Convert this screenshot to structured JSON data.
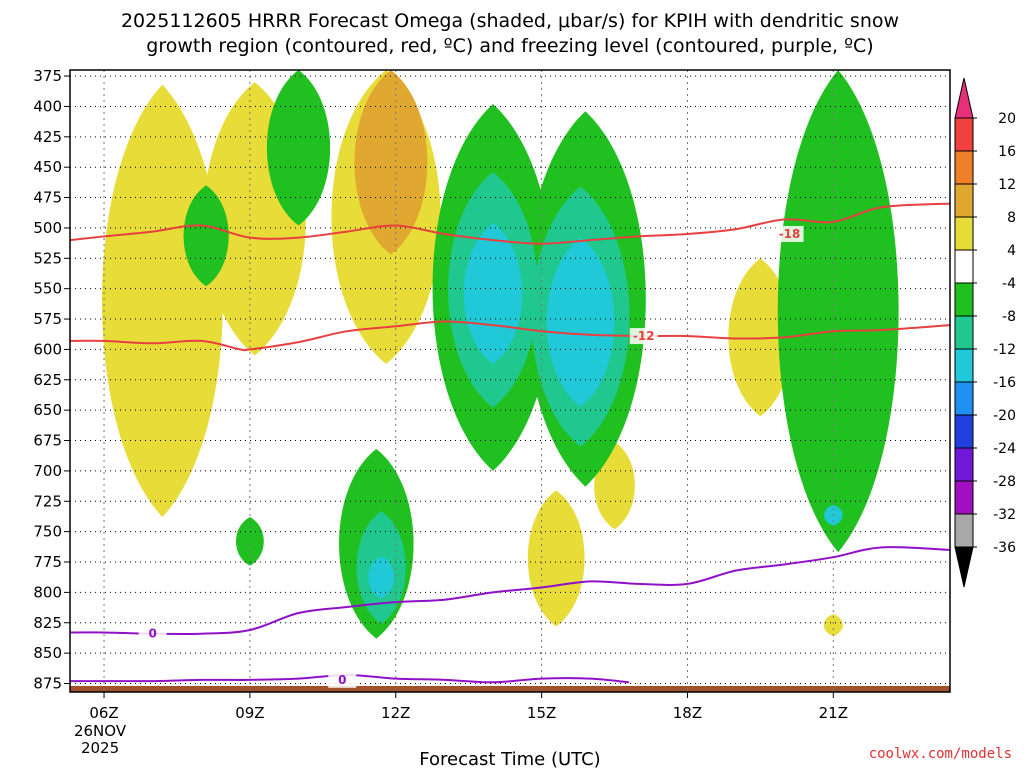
{
  "chart_data": {
    "type": "time-height contour",
    "title_line1": "2025112605 HRRR Forecast Omega (shaded, μbar/s) for KPIH with dendritic snow",
    "title_line2": "growth region (contoured, red, ºC) and freezing level (contoured, purple, ºC)",
    "xlabel": "Forecast Time (UTC)",
    "credit": "coolwx.com/models",
    "x_range_hours": [
      5.3,
      23.4
    ],
    "y_range_mb": [
      370,
      882
    ],
    "y_ticks": [
      375,
      400,
      425,
      450,
      475,
      500,
      525,
      550,
      575,
      600,
      625,
      650,
      675,
      700,
      725,
      750,
      775,
      800,
      825,
      850,
      875
    ],
    "x_ticks": [
      {
        "hour": 6,
        "label": "06Z",
        "date1": "26NOV",
        "date2": "2025"
      },
      {
        "hour": 9,
        "label": "09Z"
      },
      {
        "hour": 12,
        "label": "12Z"
      },
      {
        "hour": 15,
        "label": "15Z"
      },
      {
        "hour": 18,
        "label": "18Z"
      },
      {
        "hour": 21,
        "label": "21Z"
      }
    ],
    "colorbar": {
      "levels": [
        20,
        16,
        12,
        8,
        4,
        -4,
        -8,
        -12,
        -16,
        -20,
        -24,
        -28,
        -32,
        -36
      ],
      "colors": [
        "#e8307a",
        "#f04040",
        "#f08028",
        "#e0a830",
        "#e8dc38",
        "#ffffff",
        "#20c020",
        "#20c890",
        "#20c8d8",
        "#2090f0",
        "#2040e0",
        "#7018d8",
        "#a010c0",
        "#a8a8a8",
        "#000000"
      ]
    },
    "red_contours": [
      {
        "label": "-18",
        "label_at": [
          20.1,
          505
        ],
        "points": [
          [
            5.3,
            510
          ],
          [
            6,
            507
          ],
          [
            7,
            503
          ],
          [
            8,
            498
          ],
          [
            9,
            508
          ],
          [
            10,
            508
          ],
          [
            11,
            503
          ],
          [
            12,
            498
          ],
          [
            13,
            505
          ],
          [
            14,
            510
          ],
          [
            15,
            513
          ],
          [
            16,
            510
          ],
          [
            17,
            507
          ],
          [
            18,
            505
          ],
          [
            19,
            501
          ],
          [
            20,
            493
          ],
          [
            21,
            495
          ],
          [
            22,
            483
          ],
          [
            23.4,
            480
          ]
        ]
      },
      {
        "label": "-12",
        "label_at": [
          17.1,
          589
        ],
        "points": [
          [
            5.3,
            593
          ],
          [
            6,
            593
          ],
          [
            7,
            595
          ],
          [
            8,
            593
          ],
          [
            8.8,
            600
          ],
          [
            9,
            600
          ],
          [
            10,
            594
          ],
          [
            11,
            585
          ],
          [
            12,
            581
          ],
          [
            13,
            577
          ],
          [
            14,
            580
          ],
          [
            15,
            585
          ],
          [
            16,
            588
          ],
          [
            17,
            589
          ],
          [
            18,
            589
          ],
          [
            19,
            591
          ],
          [
            20,
            590
          ],
          [
            21,
            585
          ],
          [
            22,
            584
          ],
          [
            23.4,
            580
          ]
        ]
      }
    ],
    "purple_contours": [
      {
        "label": "0",
        "label_at": [
          7,
          834
        ],
        "points": [
          [
            5.3,
            833
          ],
          [
            6,
            833
          ],
          [
            7,
            834
          ],
          [
            8,
            834
          ],
          [
            9,
            831
          ],
          [
            10,
            817
          ],
          [
            11,
            812
          ],
          [
            12,
            808
          ],
          [
            13,
            806
          ],
          [
            14,
            800
          ],
          [
            15,
            796
          ],
          [
            16,
            791
          ],
          [
            17,
            793
          ],
          [
            18,
            793
          ],
          [
            19,
            782
          ],
          [
            20,
            777
          ],
          [
            21,
            771
          ],
          [
            22,
            763
          ],
          [
            23.4,
            765
          ]
        ]
      },
      {
        "label": "0",
        "label_at": [
          10.9,
          872
        ],
        "points": [
          [
            5.3,
            873
          ],
          [
            6,
            873
          ],
          [
            7,
            873
          ],
          [
            8,
            872
          ],
          [
            9,
            872
          ],
          [
            10,
            871
          ],
          [
            11,
            868
          ],
          [
            12,
            871
          ],
          [
            13,
            872
          ],
          [
            14,
            874
          ],
          [
            15,
            871
          ],
          [
            16,
            871
          ],
          [
            16.8,
            874
          ]
        ]
      }
    ],
    "omega_regions": [
      {
        "level": "4",
        "color": "#e8dc38",
        "center_hour": 7.2,
        "span": [
          382,
          738
        ]
      },
      {
        "level": "4",
        "color": "#e8dc38",
        "center_hour": 9.1,
        "span": [
          380,
          605
        ]
      },
      {
        "level": "4",
        "color": "#e8dc38",
        "center_hour": 11.8,
        "span": [
          370,
          612
        ]
      },
      {
        "level": "8",
        "color": "#e0a830",
        "center_hour": 11.9,
        "span": [
          370,
          522
        ]
      },
      {
        "level": "4",
        "color": "#e8dc38",
        "center_hour": 15.3,
        "span": [
          716,
          828
        ]
      },
      {
        "level": "4",
        "color": "#e8dc38",
        "center_hour": 16.5,
        "span": [
          676,
          748
        ]
      },
      {
        "level": "4",
        "color": "#e8dc38",
        "center_hour": 19.5,
        "span": [
          525,
          655
        ]
      },
      {
        "level": "4",
        "color": "#e8dc38",
        "center_hour": 21.0,
        "span": [
          818,
          836
        ]
      },
      {
        "level": "-4",
        "color": "#20c020",
        "center_hour": 8.1,
        "span": [
          465,
          548
        ]
      },
      {
        "level": "-4",
        "color": "#20c020",
        "center_hour": 10.0,
        "span": [
          370,
          498
        ]
      },
      {
        "level": "-4",
        "color": "#20c020",
        "center_hour": 9.0,
        "span": [
          738,
          778
        ]
      },
      {
        "level": "-4",
        "color": "#20c020",
        "center_hour": 14.0,
        "span": [
          398,
          700
        ]
      },
      {
        "level": "-4",
        "color": "#20c020",
        "center_hour": 15.9,
        "span": [
          404,
          713
        ]
      },
      {
        "level": "-4",
        "color": "#20c020",
        "center_hour": 11.6,
        "span": [
          682,
          838
        ]
      },
      {
        "level": "-4",
        "color": "#20c020",
        "center_hour": 21.1,
        "span": [
          370,
          767
        ]
      },
      {
        "level": "-8",
        "color": "#20c890",
        "center_hour": 14.0,
        "span": [
          454,
          648
        ]
      },
      {
        "level": "-8",
        "color": "#20c890",
        "center_hour": 15.8,
        "span": [
          466,
          680
        ]
      },
      {
        "level": "-8",
        "color": "#20c890",
        "center_hour": 11.7,
        "span": [
          733,
          826
        ]
      },
      {
        "level": "-12",
        "color": "#20c8d8",
        "center_hour": 14.0,
        "span": [
          496,
          612
        ]
      },
      {
        "level": "-12",
        "color": "#20c8d8",
        "center_hour": 15.8,
        "span": [
          508,
          647
        ]
      },
      {
        "level": "-12",
        "color": "#20c8d8",
        "center_hour": 11.7,
        "span": [
          770,
          805
        ]
      },
      {
        "level": "-12",
        "color": "#20c8d8",
        "center_hour": 21.0,
        "span": [
          728,
          745
        ]
      }
    ]
  }
}
